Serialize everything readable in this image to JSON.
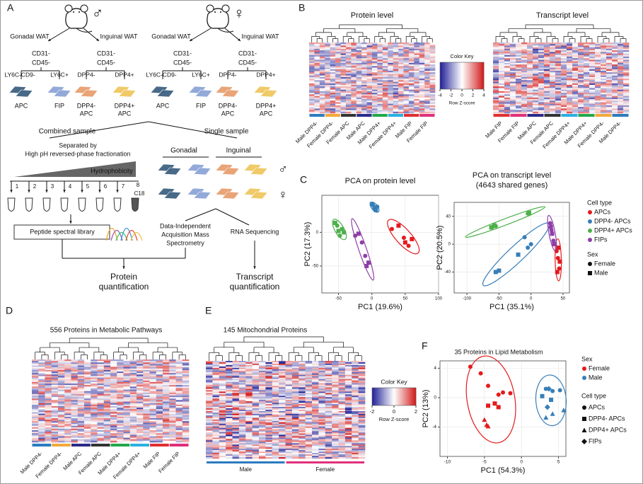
{
  "A": {
    "label": "A",
    "groups": [
      {
        "symbol": "♂",
        "symbol_color": "#2aa6de",
        "left_depot": "Gonadal WAT",
        "right_depot": "Inguinal WAT",
        "left_markers": [
          "CD31-",
          "CD45-"
        ],
        "right_markers": [
          "CD31-",
          "CD45-"
        ],
        "left_split": [
          "LY6C-CD9-",
          "LY6C+"
        ],
        "right_split": [
          "DPP4-",
          "DPP4+"
        ],
        "left_cells": [
          "APC",
          "FIP"
        ],
        "right_cells": [
          [
            "DPP4-",
            "APC"
          ],
          [
            "DPP4+",
            "APC"
          ]
        ]
      },
      {
        "symbol": "♀",
        "symbol_color": "#e8347a",
        "left_depot": "Gonadal WAT",
        "right_depot": "Inguinal WAT",
        "left_markers": [
          "CD31-",
          "CD45-"
        ],
        "right_markers": [
          "CD31-",
          "CD45-"
        ],
        "left_split": [
          "LY6C-CD9-",
          "LY6C+"
        ],
        "right_split": [
          "DPP4-",
          "DPP4+"
        ],
        "left_cells": [
          "APC",
          "FIP"
        ],
        "right_cells": [
          [
            "DPP4-",
            "APC"
          ],
          [
            "DPP4+",
            "APC"
          ]
        ]
      }
    ],
    "combined_sample": "Combined sample",
    "single_sample": "Single sample",
    "separation": [
      "Separated by",
      "High pH reversed-phase fractionation"
    ],
    "hydrophobicity": "Hydrophobicity",
    "fractions": [
      1,
      2,
      3,
      4,
      5,
      6,
      7,
      8
    ],
    "c18": "C18",
    "library": "Peptide spectral library",
    "gonadal": "Gonadal",
    "inguinal": "Inguinal",
    "male_symbol": "♂",
    "female_symbol": "♀",
    "dia": [
      "Data-Independent",
      "Acquisition Mass",
      "Spectrometry"
    ],
    "rna": "RNA Sequencing",
    "protein_quant": [
      "Protein",
      "quantification"
    ],
    "transcript_quant": [
      "Transcript",
      "quantification"
    ]
  },
  "B": {
    "label": "B",
    "protein": {
      "title": "Protein level",
      "columns": [
        "Male DPP4-",
        "Female DPP4-",
        "Female APC",
        "Male APC",
        "Male DPP4+",
        "Female DPP4+",
        "Male FIP",
        "Female FIP"
      ],
      "column_colors": [
        "#2b7bc0",
        "#f2a93b",
        "#333333",
        "#2a2a8a",
        "#22a84a",
        "#2ab0e0",
        "#e03030",
        "#e0307a"
      ]
    },
    "transcript": {
      "title": "Transcript level",
      "columns": [
        "Male FIP",
        "Female FIP",
        "Male APC",
        "Female APC",
        "Female DPP4+",
        "Male DPP4+",
        "Female DPP4-",
        "Male DPP4-"
      ],
      "column_colors": [
        "#e03030",
        "#e0307a",
        "#2a2a8a",
        "#333333",
        "#2ab0e0",
        "#22a84a",
        "#f2a93b",
        "#2b7bc0"
      ]
    },
    "color_key": {
      "title": "Color Key",
      "ticks": [
        -4,
        -2,
        0,
        2,
        4
      ],
      "label": "Row Z-score"
    }
  },
  "C": {
    "label": "C",
    "legend": {
      "cell_type_title": "Cell type",
      "cell_types": [
        {
          "name": "APCs",
          "color": "#e41a1c"
        },
        {
          "name": "DPP4-  APCs",
          "color": "#377eb8"
        },
        {
          "name": "DPP4+  APCs",
          "color": "#4daf4a"
        },
        {
          "name": "FIPs",
          "color": "#8e3fa8"
        }
      ],
      "sex_title": "Sex",
      "sexes": [
        {
          "name": "Female",
          "shape": "circle"
        },
        {
          "name": "Male",
          "shape": "square"
        }
      ]
    },
    "protein_pca": {
      "type": "scatter",
      "title": [
        "PCA on protein level"
      ],
      "x_label": "PC1 (19.6%)",
      "y_label": "PC2 (17.3%)",
      "xlim": [
        -75,
        100
      ],
      "ylim": [
        -90,
        55
      ],
      "xticks": [
        -50,
        0,
        50,
        100
      ],
      "yticks": [
        -50,
        0
      ],
      "grid": true,
      "series": [
        [
          {
            "x": [
              30,
              48,
              55
            ],
            "y": [
              5,
              -8,
              -20
            ]
          },
          {
            "x": [
              40,
              60,
              50
            ],
            "y": [
              10,
              -10,
              -15
            ]
          }
        ],
        [
          {
            "x": [
              2,
              5,
              8
            ],
            "y": [
              40,
              35,
              38
            ]
          },
          {
            "x": [
              0,
              6,
              4
            ],
            "y": [
              42,
              33,
              36
            ]
          }
        ],
        [
          {
            "x": [
              -52,
              -45,
              -48
            ],
            "y": [
              10,
              5,
              -5
            ]
          },
          {
            "x": [
              -55,
              -42,
              -50
            ],
            "y": [
              14,
              0,
              2
            ]
          }
        ],
        [
          {
            "x": [
              -25,
              -15,
              -10
            ],
            "y": [
              -5,
              -15,
              -35
            ]
          },
          {
            "x": [
              -20,
              -5,
              -8
            ],
            "y": [
              -2,
              -45,
              -50
            ]
          }
        ]
      ]
    },
    "transcript_pca": {
      "type": "scatter",
      "title": [
        "PCA on transcript level",
        "(4643 shared genes)"
      ],
      "x_label": "PC1 (35.1%)",
      "y_label": "PC2 (20.5%)",
      "xlim": [
        -120,
        60
      ],
      "ylim": [
        -70,
        60
      ],
      "xticks": [
        -100,
        -50,
        0,
        50
      ],
      "yticks": [
        -40,
        0,
        40
      ],
      "grid": true,
      "series": [
        [
          {
            "x": [
              42,
              44,
              40
            ],
            "y": [
              -20,
              -35,
              -10
            ]
          },
          {
            "x": [
              43,
              41,
              45
            ],
            "y": [
              -5,
              -40,
              -25
            ]
          }
        ],
        [
          {
            "x": [
              -10,
              -5,
              0
            ],
            "y": [
              10,
              -5,
              0
            ]
          },
          {
            "x": [
              -55,
              -50,
              -20
            ],
            "y": [
              -40,
              -38,
              -15
            ]
          }
        ],
        [
          {
            "x": [
              -60,
              -5,
              -55
            ],
            "y": [
              25,
              44,
              26
            ]
          },
          {
            "x": [
              -57,
              -3,
              -62
            ],
            "y": [
              27,
              45,
              24
            ]
          }
        ],
        [
          {
            "x": [
              30,
              35,
              32
            ],
            "y": [
              30,
              5,
              20
            ]
          },
          {
            "x": [
              33,
              36,
              31
            ],
            "y": [
              15,
              0,
              25
            ]
          }
        ]
      ]
    }
  },
  "D": {
    "label": "D",
    "title": "556 Proteins in Metabolic Pathways",
    "columns": [
      "Male DPP4-",
      "Female DPP4-",
      "Male APC",
      "Female APC",
      "Male DPP4+",
      "Female DPP4+",
      "Male FIP",
      "Female FIP"
    ],
    "column_colors": [
      "#2b7bc0",
      "#f2a93b",
      "#2a2a8a",
      "#333333",
      "#22a84a",
      "#2ab0e0",
      "#e03030",
      "#e0307a"
    ]
  },
  "E": {
    "label": "E",
    "title": "145 Mitochondrial Proteins",
    "groups": [
      "Male",
      "Female"
    ],
    "group_colors": [
      "#2b7bc0",
      "#e0307a"
    ],
    "color_key": {
      "title": "Color Key",
      "ticks": [
        -2,
        0,
        2
      ],
      "label": "Row Z-score"
    }
  },
  "F": {
    "label": "F",
    "type": "scatter",
    "title": "35 Proteins in Lipid Metabolism",
    "x_label": "PC1 (54.3%)",
    "y_label": "PC2 (13%)",
    "xlim": [
      -11,
      6
    ],
    "ylim": [
      -8,
      5
    ],
    "xticks": [
      -10,
      -5,
      0,
      5
    ],
    "yticks": [
      -4,
      0,
      4
    ],
    "grid": true,
    "legend": {
      "sex_title": "Sex",
      "sexes": [
        {
          "name": "Female",
          "color": "#e41a1c"
        },
        {
          "name": "Male",
          "color": "#377eb8"
        }
      ],
      "cell_type_title": "Cell type",
      "cell_types": [
        {
          "name": "APCs",
          "shape": "circle"
        },
        {
          "name": "DPP4-  APCs",
          "shape": "square"
        },
        {
          "name": "DPP4+ APCs",
          "shape": "triangle"
        },
        {
          "name": "FIPs",
          "shape": "diamond"
        }
      ]
    },
    "series": [
      [
        {
          "x": [
            -6.9,
            -5.5,
            -4.5,
            -3.1,
            -2.5,
            -1.5
          ],
          "y": [
            4.2,
            3.3,
            1.6,
            0.4,
            0.7,
            0.6
          ]
        },
        {
          "x": [
            -4.5,
            -3.6,
            -3.1
          ],
          "y": [
            -1.1,
            -0.8,
            -1.3
          ]
        },
        {
          "x": [
            -5,
            -4.7,
            -4.5
          ],
          "y": [
            -3,
            -3.7,
            -3.9
          ]
        },
        {
          "x": [],
          "y": []
        }
      ],
      [
        {
          "x": [
            3.3,
            4.2,
            5.2
          ],
          "y": [
            1.2,
            0.9,
            1
          ]
        },
        {
          "x": [
            4,
            2.8
          ],
          "y": [
            -0.3,
            0.2
          ]
        },
        {
          "x": [
            3.3,
            5.7,
            4.2
          ],
          "y": [
            -2.7,
            -1.7,
            -2.2
          ]
        },
        {
          "x": [
            3.7,
            3.5
          ],
          "y": [
            1.2,
            -1.3
          ]
        }
      ]
    ]
  }
}
